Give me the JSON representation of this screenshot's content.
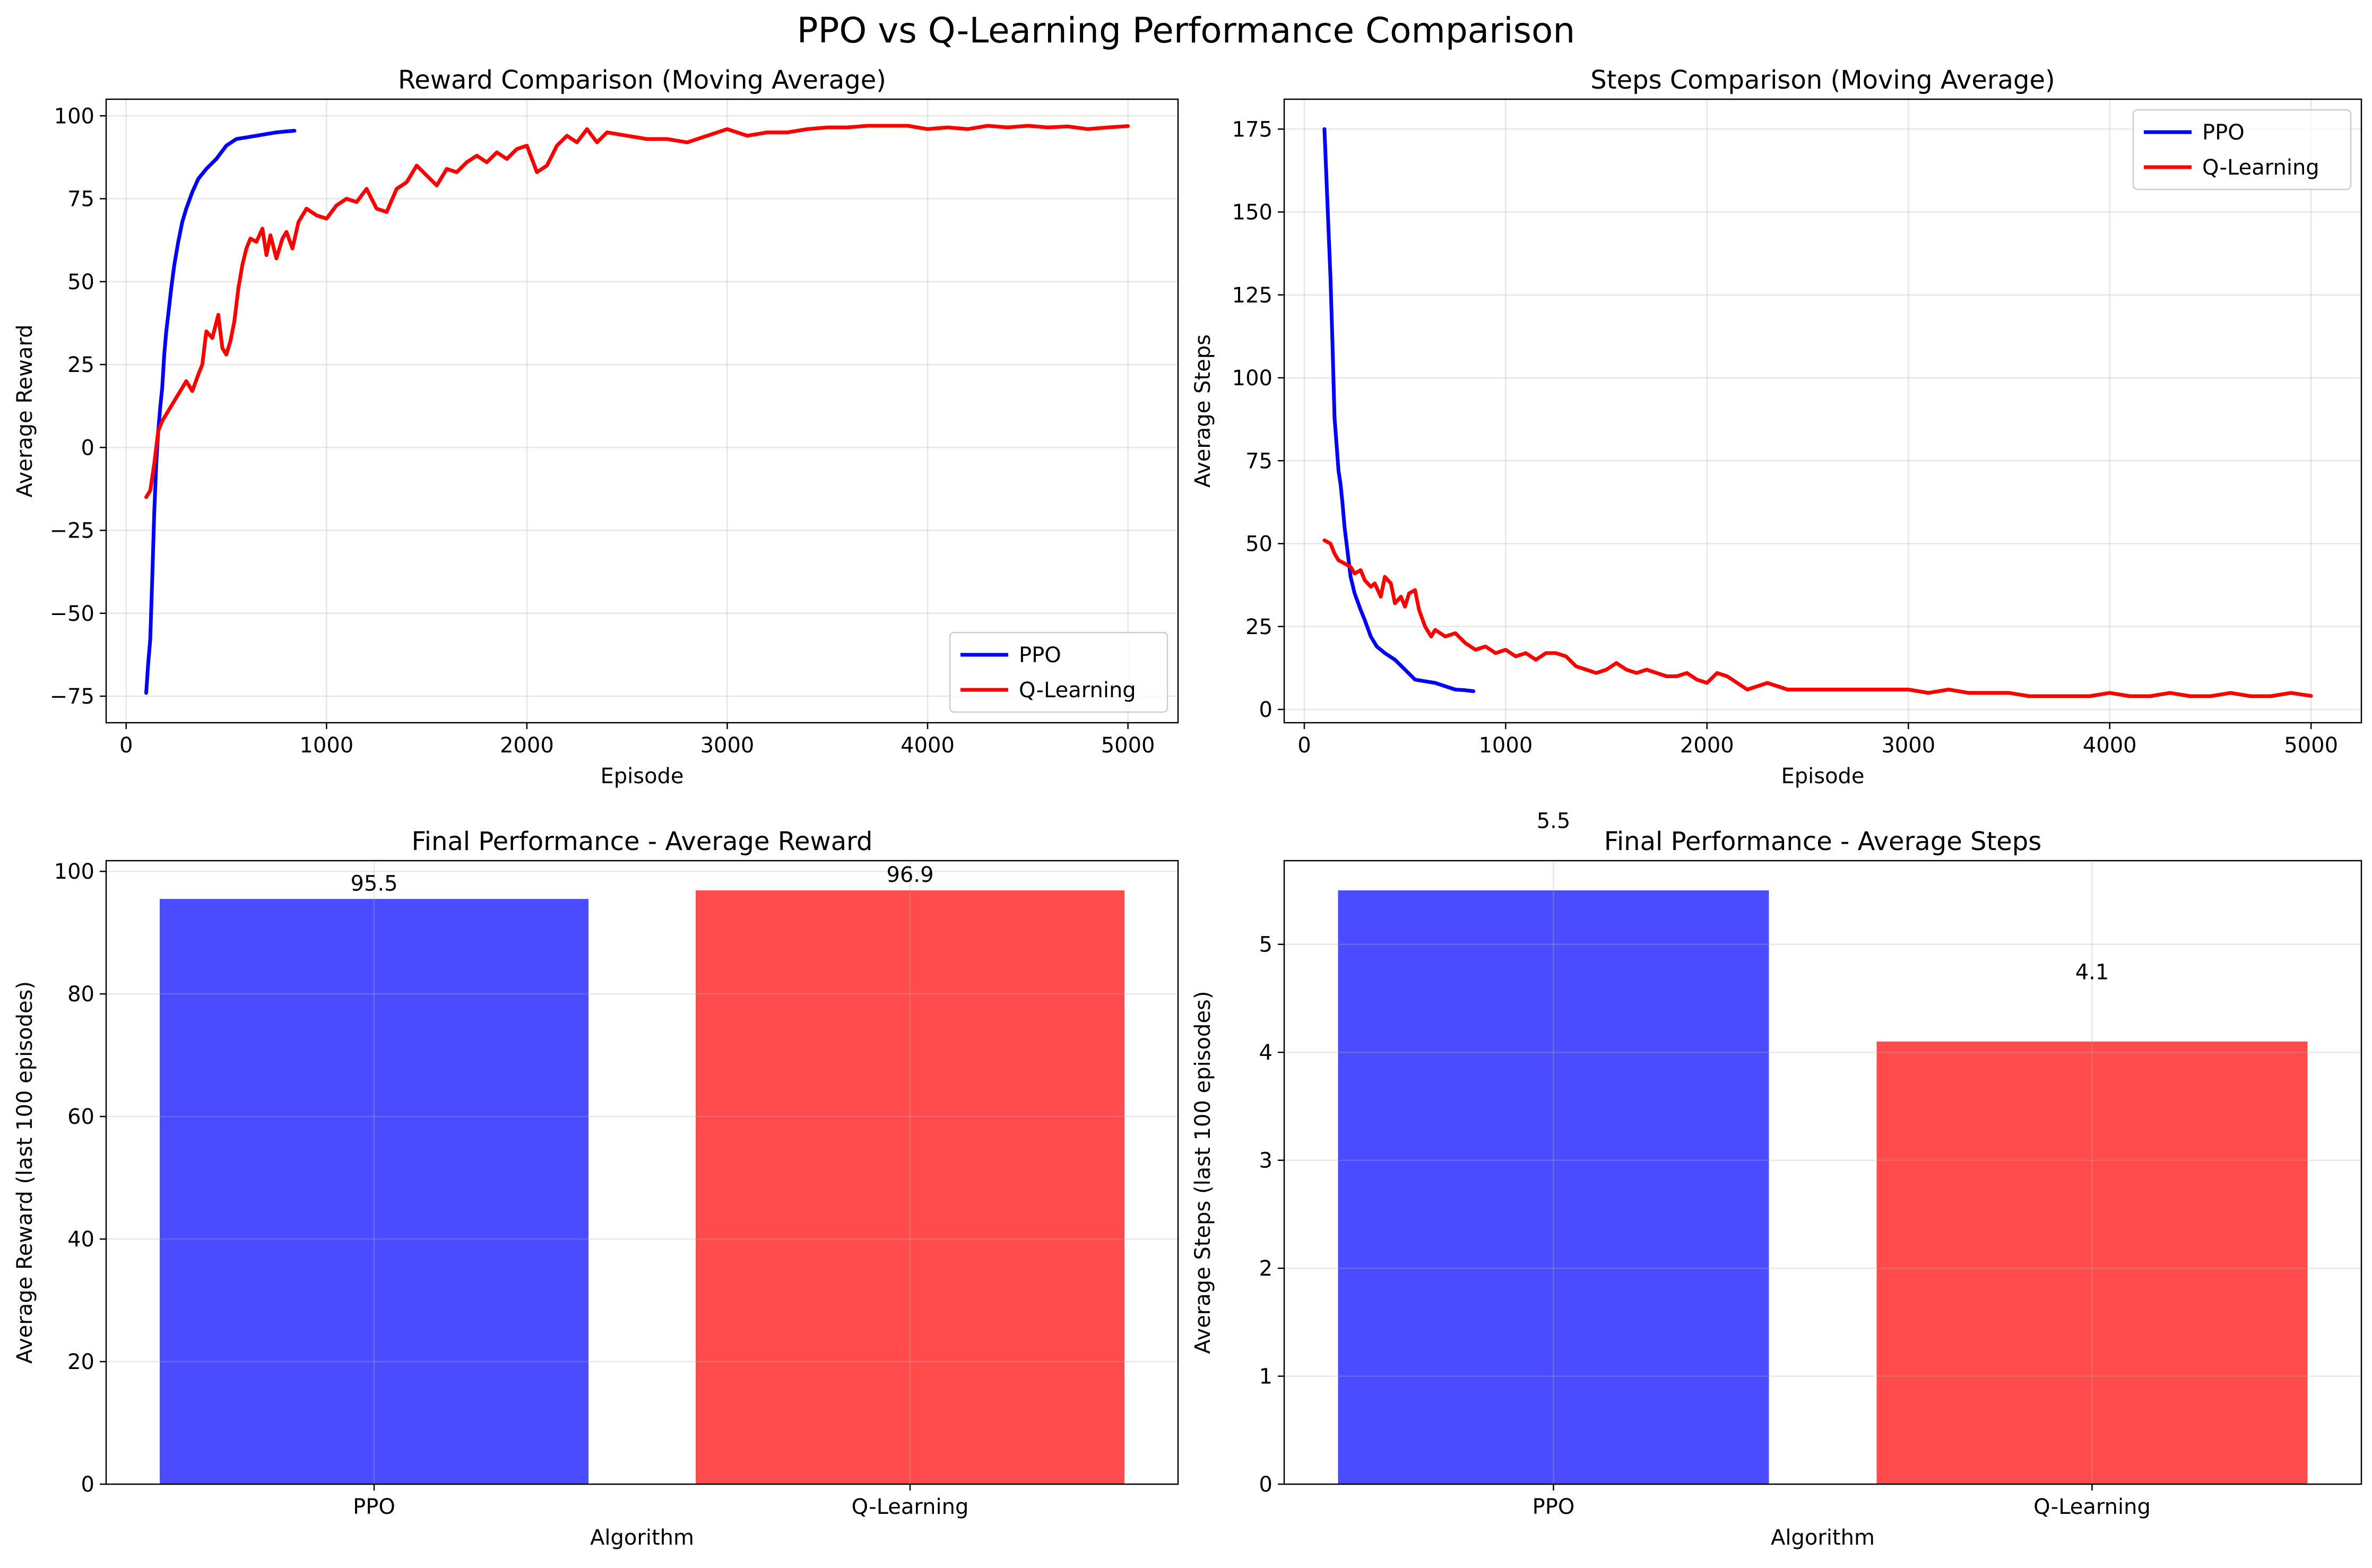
{
  "figure": {
    "suptitle": "PPO vs Q-Learning Performance Comparison"
  },
  "chart_data": [
    {
      "type": "line",
      "title": "Reward Comparison (Moving Average)",
      "xlabel": "Episode",
      "ylabel": "Average Reward",
      "xlim": [
        -100,
        5250
      ],
      "ylim": [
        -83,
        105
      ],
      "xticks": [
        0,
        1000,
        2000,
        3000,
        4000,
        5000
      ],
      "yticks": [
        -75,
        -50,
        -25,
        0,
        25,
        50,
        75,
        100
      ],
      "grid": true,
      "legend": "lower right",
      "series": [
        {
          "name": "PPO",
          "color": "#0000ff",
          "x": [
            100,
            110,
            120,
            130,
            140,
            150,
            160,
            170,
            180,
            190,
            200,
            210,
            225,
            240,
            260,
            280,
            300,
            330,
            360,
            400,
            450,
            500,
            550,
            600,
            650,
            700,
            750,
            800,
            840
          ],
          "y": [
            -74,
            -65,
            -58,
            -40,
            -20,
            -5,
            5,
            12,
            18,
            28,
            35,
            40,
            48,
            55,
            62,
            68,
            72,
            77,
            81,
            84,
            87,
            91,
            93,
            93.5,
            94,
            94.5,
            95,
            95.3,
            95.5
          ]
        },
        {
          "name": "Q-Learning",
          "color": "#ff0000",
          "x": [
            100,
            120,
            140,
            160,
            180,
            200,
            220,
            250,
            280,
            300,
            330,
            360,
            380,
            400,
            430,
            460,
            480,
            500,
            520,
            540,
            560,
            580,
            600,
            620,
            650,
            680,
            700,
            720,
            750,
            780,
            800,
            830,
            860,
            900,
            950,
            1000,
            1050,
            1100,
            1150,
            1200,
            1250,
            1300,
            1350,
            1400,
            1450,
            1500,
            1550,
            1600,
            1650,
            1700,
            1750,
            1800,
            1850,
            1900,
            1950,
            2000,
            2050,
            2100,
            2150,
            2200,
            2250,
            2300,
            2350,
            2400,
            2500,
            2600,
            2700,
            2800,
            2900,
            3000,
            3100,
            3200,
            3300,
            3400,
            3500,
            3600,
            3700,
            3800,
            3900,
            4000,
            4100,
            4200,
            4300,
            4400,
            4500,
            4600,
            4700,
            4800,
            4900,
            5000
          ],
          "y": [
            -15,
            -13,
            -5,
            5,
            8,
            10,
            12,
            15,
            18,
            20,
            17,
            22,
            25,
            35,
            33,
            40,
            30,
            28,
            32,
            38,
            48,
            55,
            60,
            63,
            62,
            66,
            58,
            64,
            57,
            63,
            65,
            60,
            68,
            72,
            70,
            69,
            73,
            75,
            74,
            78,
            72,
            71,
            78,
            80,
            85,
            82,
            79,
            84,
            83,
            86,
            88,
            86,
            89,
            87,
            90,
            91,
            83,
            85,
            91,
            94,
            92,
            96,
            92,
            95,
            94,
            93,
            93,
            92,
            94,
            96,
            94,
            95,
            95,
            96,
            96.5,
            96.5,
            97,
            97,
            97,
            96,
            96.5,
            96,
            97,
            96.5,
            97,
            96.5,
            96.8,
            96,
            96.5,
            96.9
          ]
        }
      ]
    },
    {
      "type": "line",
      "title": "Steps Comparison (Moving Average)",
      "xlabel": "Episode",
      "ylabel": "Average Steps",
      "xlim": [
        -100,
        5250
      ],
      "ylim": [
        -4,
        184
      ],
      "xticks": [
        0,
        1000,
        2000,
        3000,
        4000,
        5000
      ],
      "yticks": [
        0,
        25,
        50,
        75,
        100,
        125,
        150,
        175
      ],
      "grid": true,
      "legend": "upper right",
      "series": [
        {
          "name": "PPO",
          "color": "#0000ff",
          "x": [
            100,
            110,
            120,
            130,
            140,
            150,
            160,
            170,
            180,
            190,
            200,
            210,
            220,
            230,
            250,
            280,
            300,
            330,
            360,
            400,
            450,
            500,
            550,
            600,
            650,
            700,
            750,
            800,
            840
          ],
          "y": [
            175,
            160,
            145,
            130,
            110,
            88,
            80,
            72,
            68,
            62,
            55,
            50,
            45,
            40,
            35,
            30,
            27,
            22,
            19,
            17,
            15,
            12,
            9,
            8.5,
            8,
            7,
            6,
            5.8,
            5.5
          ]
        },
        {
          "name": "Q-Learning",
          "color": "#ff0000",
          "x": [
            100,
            130,
            150,
            170,
            200,
            230,
            250,
            280,
            300,
            330,
            350,
            380,
            400,
            430,
            450,
            480,
            500,
            520,
            550,
            570,
            600,
            630,
            650,
            700,
            750,
            800,
            850,
            900,
            950,
            1000,
            1050,
            1100,
            1150,
            1200,
            1250,
            1300,
            1350,
            1400,
            1450,
            1500,
            1550,
            1600,
            1650,
            1700,
            1750,
            1800,
            1850,
            1900,
            1950,
            2000,
            2050,
            2100,
            2150,
            2200,
            2300,
            2400,
            2500,
            2600,
            2700,
            2800,
            2900,
            3000,
            3100,
            3200,
            3300,
            3400,
            3500,
            3600,
            3700,
            3800,
            3900,
            4000,
            4100,
            4200,
            4300,
            4400,
            4500,
            4600,
            4700,
            4800,
            4900,
            5000
          ],
          "y": [
            51,
            50,
            47,
            45,
            44,
            43,
            41,
            42,
            39,
            37,
            38,
            34,
            40,
            38,
            32,
            34,
            31,
            35,
            36,
            30,
            25,
            22,
            24,
            22,
            23,
            20,
            18,
            19,
            17,
            18,
            16,
            17,
            15,
            17,
            17,
            16,
            13,
            12,
            11,
            12,
            14,
            12,
            11,
            12,
            11,
            10,
            10,
            11,
            9,
            8,
            11,
            10,
            8,
            6,
            8,
            6,
            6,
            6,
            6,
            6,
            6,
            6,
            5,
            6,
            5,
            5,
            5,
            4,
            4,
            4,
            4,
            5,
            4,
            4,
            5,
            4,
            4,
            5,
            4,
            4,
            5,
            4.1
          ]
        }
      ]
    },
    {
      "type": "bar",
      "title": "Final Performance - Average Reward",
      "xlabel": "Algorithm",
      "ylabel": "Average Reward (last 100 episodes)",
      "categories": [
        "PPO",
        "Q-Learning"
      ],
      "values": [
        95.5,
        96.9
      ],
      "labels": [
        "95.5",
        "96.9"
      ],
      "colors": [
        "#4b4bff",
        "#ff4b4b"
      ],
      "ylim": [
        0,
        101.745
      ],
      "yticks": [
        0,
        20,
        40,
        60,
        80,
        100
      ],
      "grid": true
    },
    {
      "type": "bar",
      "title": "Final Performance - Average Steps",
      "xlabel": "Algorithm",
      "ylabel": "Average Steps (last 100 episodes)",
      "categories": [
        "PPO",
        "Q-Learning"
      ],
      "values": [
        5.5,
        4.1
      ],
      "labels": [
        "5.5",
        "4.1"
      ],
      "colors": [
        "#4b4bff",
        "#ff4b4b"
      ],
      "ylim": [
        0,
        5.775
      ],
      "yticks": [
        0,
        1,
        2,
        3,
        4,
        5
      ],
      "grid": true
    }
  ]
}
